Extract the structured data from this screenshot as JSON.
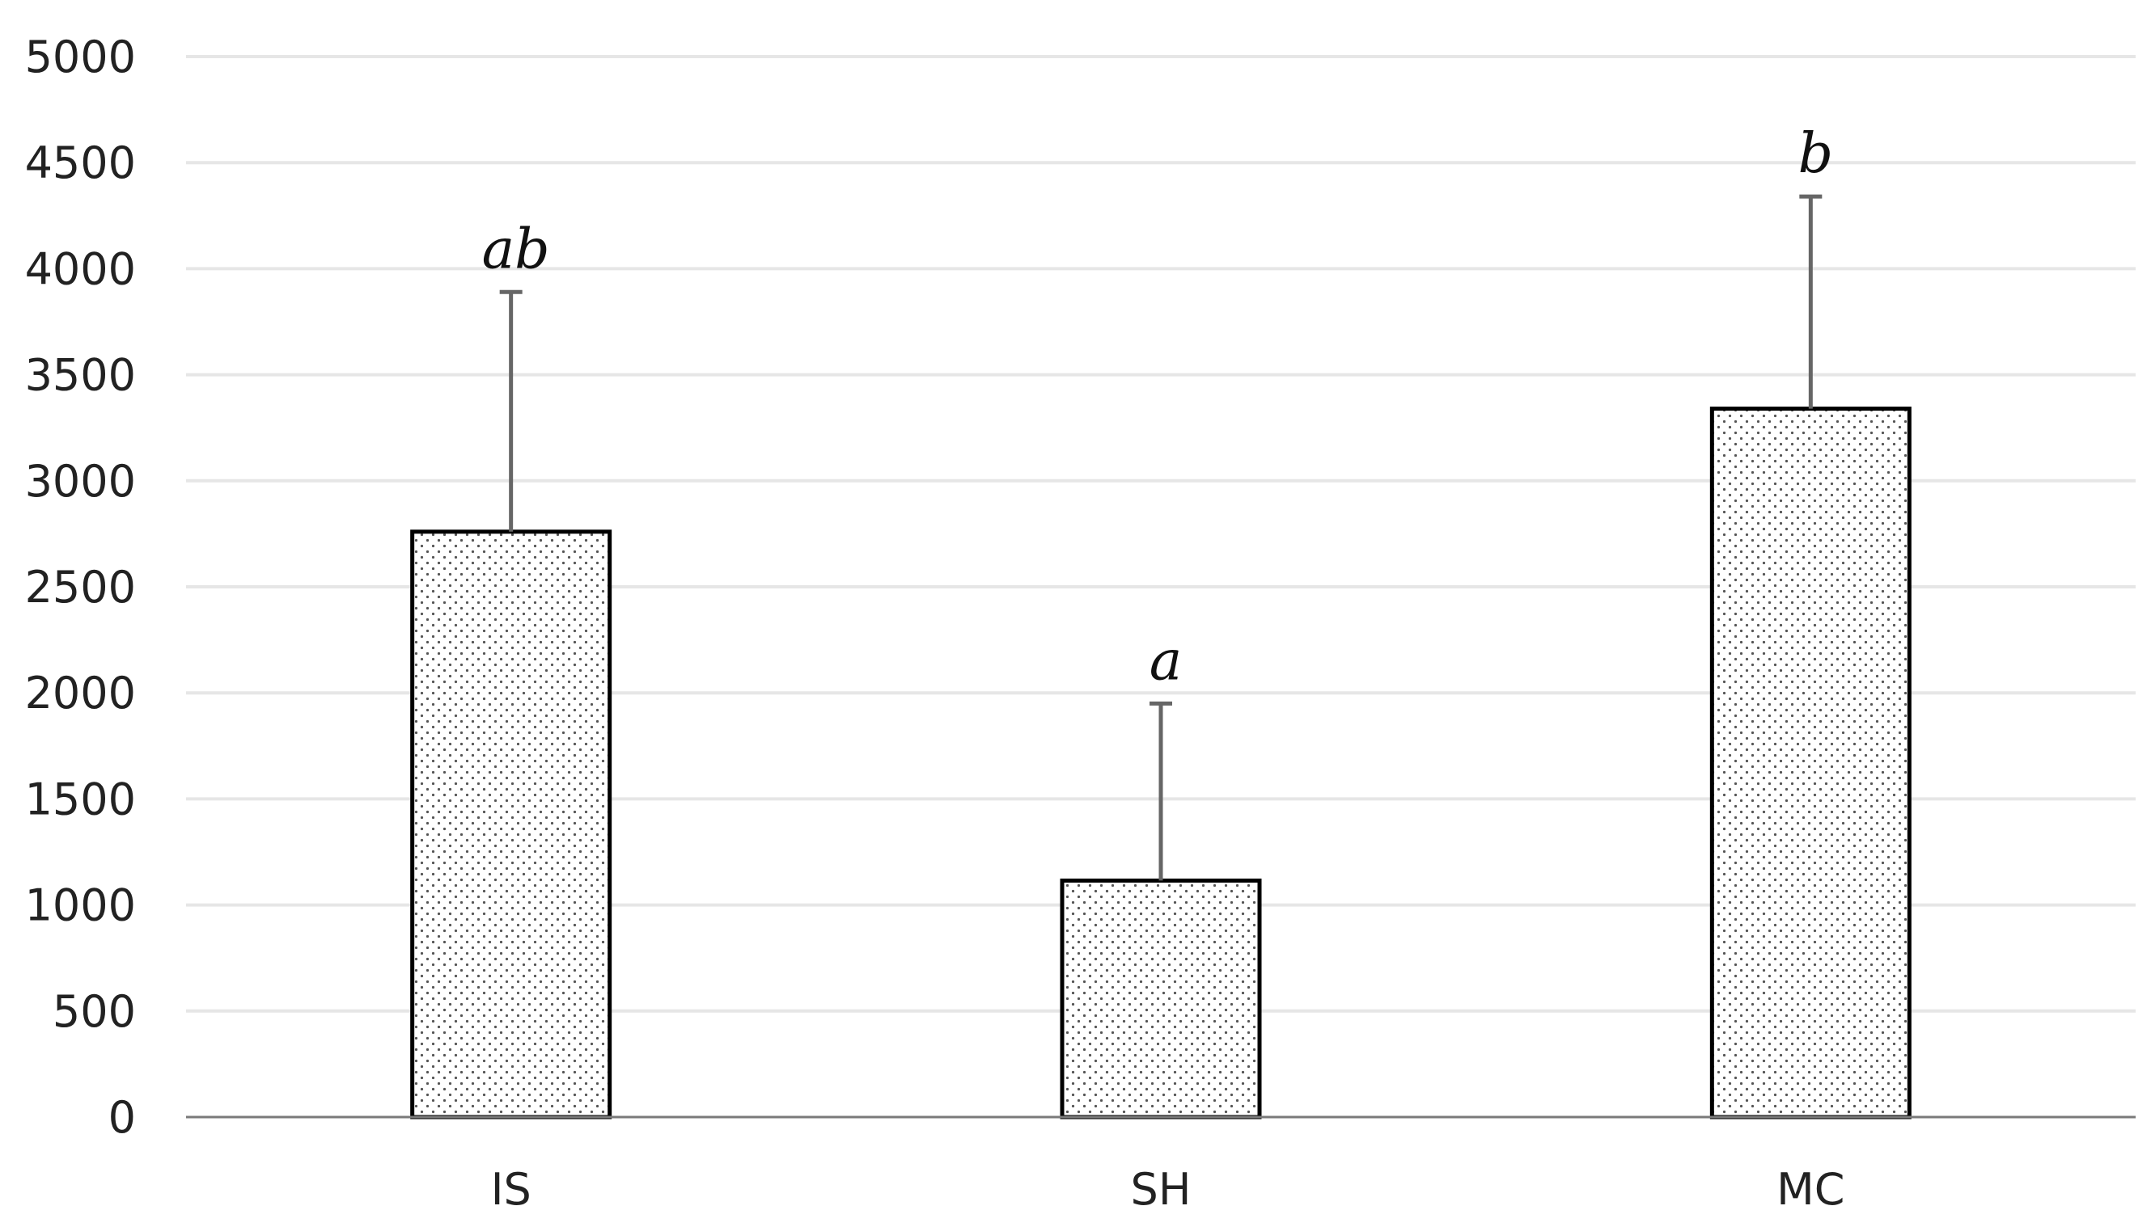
{
  "chart_data": {
    "type": "bar",
    "title": "",
    "xlabel": "",
    "ylabel": "",
    "categories": [
      "IS",
      "SH",
      "MC"
    ],
    "values": [
      2760,
      1115,
      3340
    ],
    "error_upper": [
      3890,
      1950,
      4340
    ],
    "significance_labels": [
      "ab",
      "a",
      "b"
    ],
    "ylim": [
      0,
      5000
    ],
    "y_ticks": [
      0,
      500,
      1000,
      1500,
      2000,
      2500,
      3000,
      3500,
      4000,
      4500,
      5000
    ],
    "grid": true,
    "legend": "none",
    "bar_fill": "dotted",
    "colors": {
      "bar_outline": "#000000",
      "bar_dots": "#555555",
      "gridline": "#e6e6e6",
      "axis": "#7a7a7a",
      "error_bar": "#666666"
    }
  }
}
